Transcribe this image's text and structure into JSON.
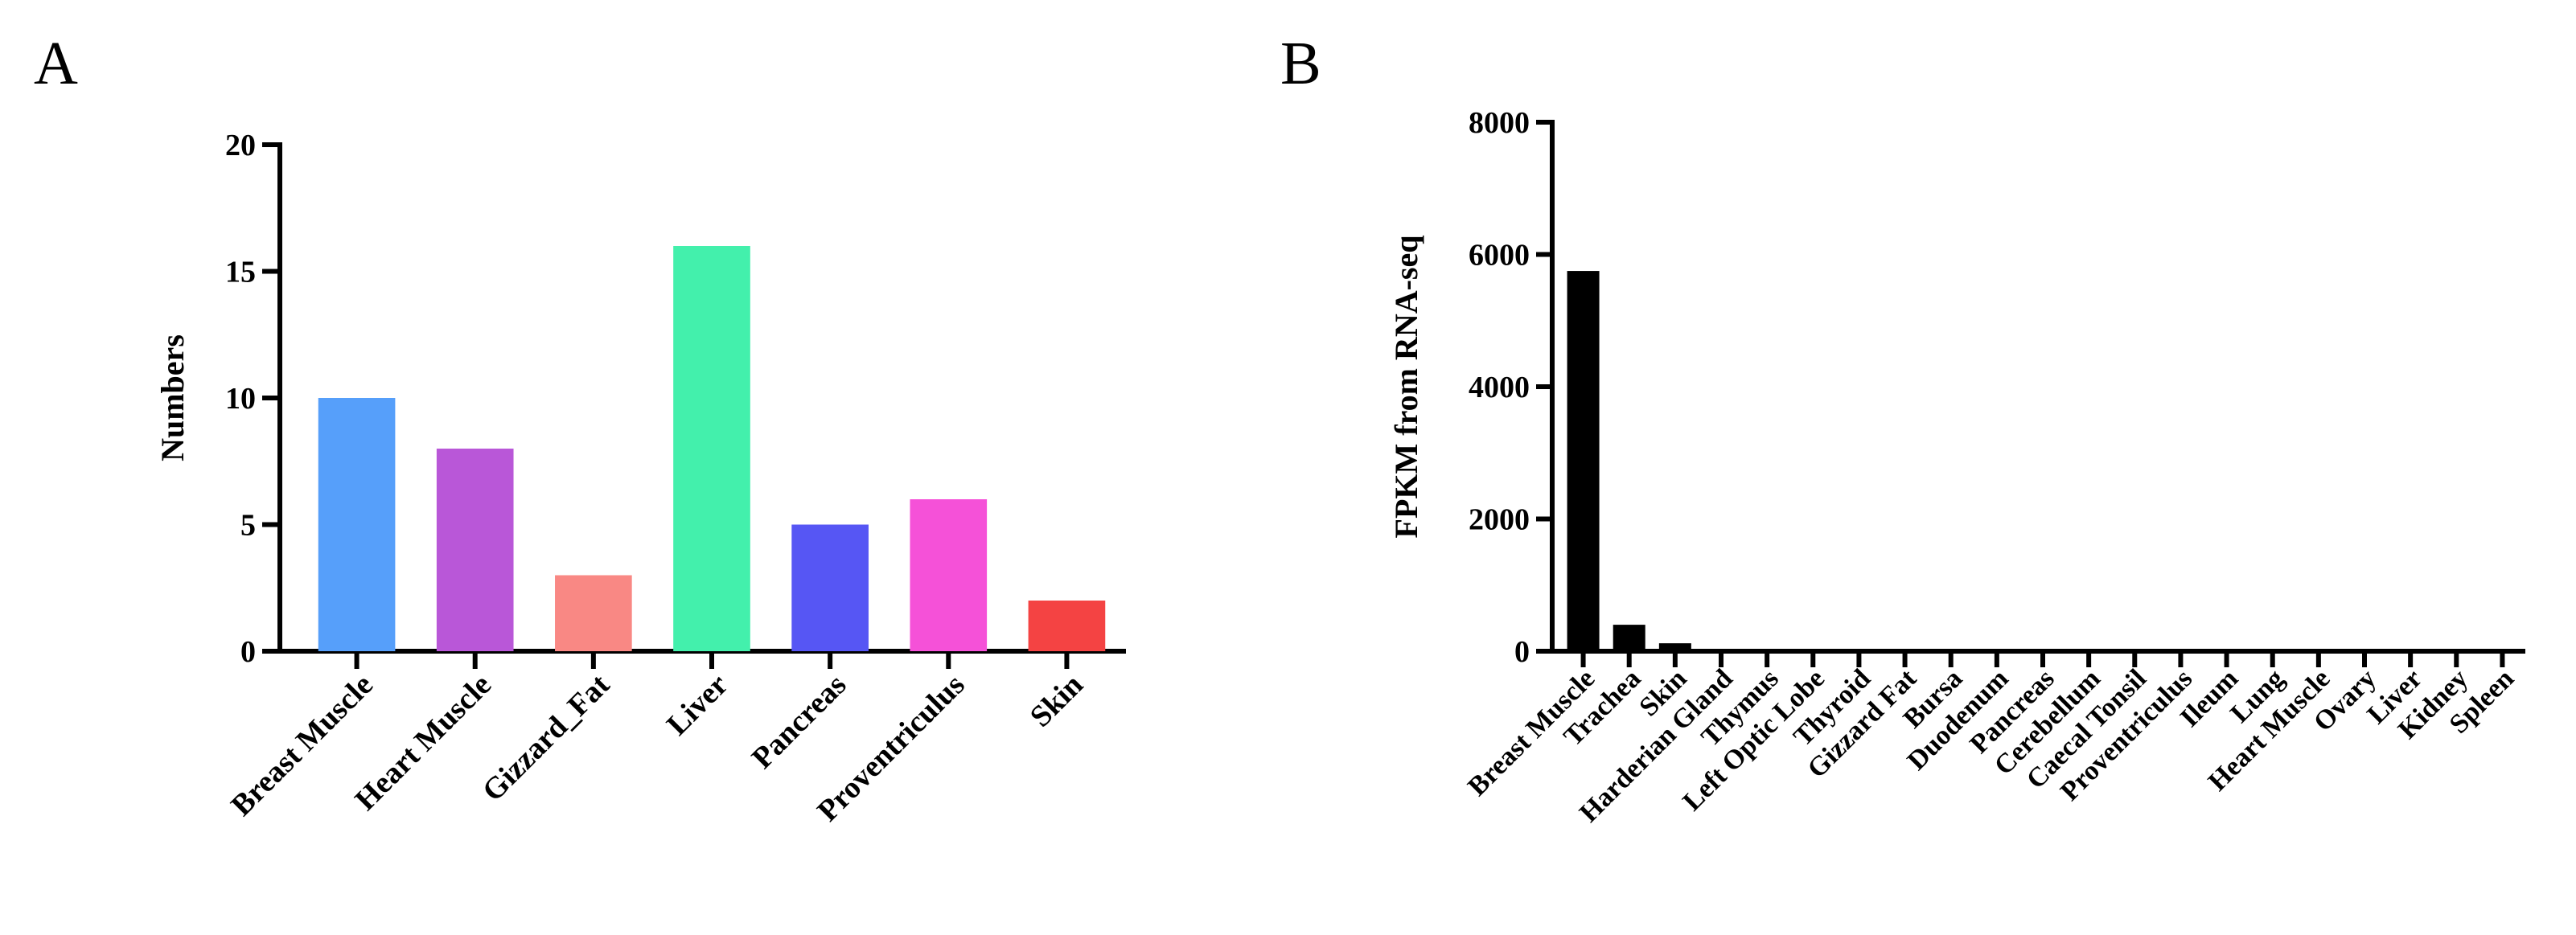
{
  "chart_data": [
    {
      "type": "bar",
      "panel": "A",
      "title": "",
      "xlabel": "",
      "ylabel": "Numbers",
      "ylim": [
        0,
        20
      ],
      "yticks": [
        0,
        5,
        10,
        15,
        20
      ],
      "categories": [
        "Breast Muscle",
        "Heart Muscle",
        "Gizzard_Fat",
        "Liver",
        "Pancreas",
        "Proventriculus",
        "Skin"
      ],
      "values": [
        10,
        8,
        3,
        16,
        5,
        6,
        2
      ],
      "colors": [
        "#569ffa",
        "#b957d8",
        "#f98884",
        "#43f0ac",
        "#5656f4",
        "#f551d8",
        "#f44343"
      ]
    },
    {
      "type": "bar",
      "panel": "B",
      "title": "",
      "xlabel": "",
      "ylabel": "FPKM from RNA-seq",
      "ylim": [
        0,
        8000
      ],
      "yticks": [
        0,
        2000,
        4000,
        6000,
        8000
      ],
      "categories": [
        "Breast Muscle",
        "Trachea",
        "Skin",
        "Harderian Gland",
        "Thymus",
        "Left Optic Lobe",
        "Thyroid",
        "Gizzard Fat",
        "Bursa",
        "Duodenum",
        "Pancreas",
        "Cerebellum",
        "Caecal Tonsil",
        "Proventriculus",
        "Ileum",
        "Lung",
        "Heart Muscle",
        "Ovary",
        "Liver",
        "Kidney",
        "Spleen"
      ],
      "values": [
        5750,
        400,
        120,
        5,
        5,
        5,
        5,
        5,
        5,
        5,
        5,
        5,
        5,
        5,
        5,
        5,
        5,
        5,
        5,
        5,
        5
      ],
      "colors": [
        "#000000"
      ]
    }
  ]
}
